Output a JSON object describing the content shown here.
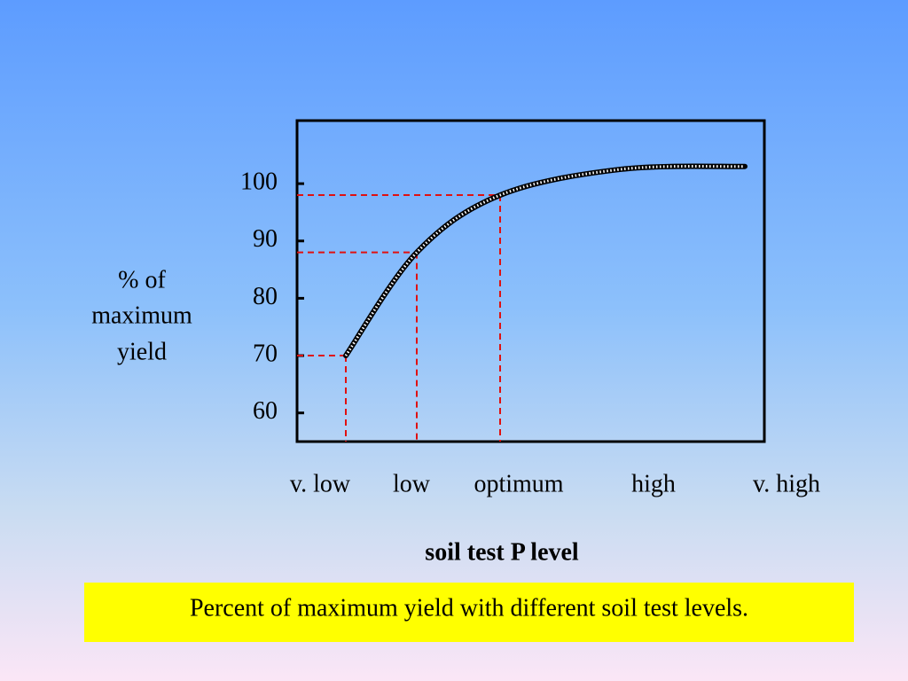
{
  "chart_data": {
    "type": "line",
    "ylabel": [
      "% of",
      "maximum",
      "yield"
    ],
    "xlabel": "soil test P level",
    "caption": "Percent of  maximum yield with different soil test levels.",
    "categories": [
      "v. low",
      "low",
      "optimum",
      "high",
      "v. high"
    ],
    "values": [
      70,
      88,
      98,
      102.5,
      103
    ],
    "ylim": [
      55,
      111
    ],
    "yticks": [
      60,
      70,
      80,
      90,
      100
    ],
    "color": "#000000",
    "guide_color": "#e01010"
  }
}
